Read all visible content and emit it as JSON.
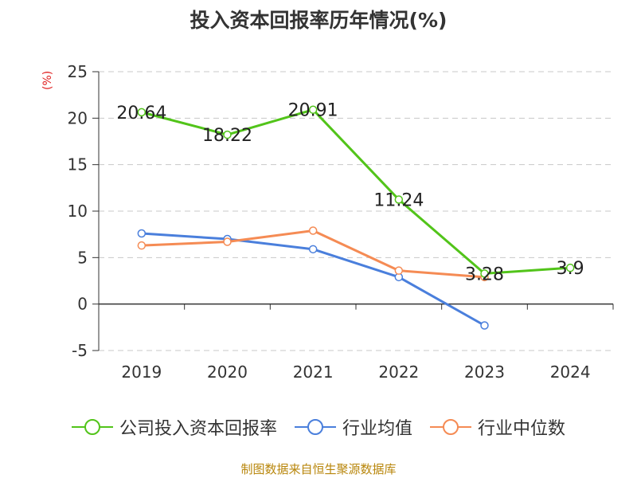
{
  "title": "投入资本回报率历年情况(%)",
  "unit_label": "(%)",
  "source": "制图数据来自恒生聚源数据库",
  "chart_data": {
    "type": "line",
    "title": "投入资本回报率历年情况(%)",
    "ylabel": "(%)",
    "xlabel": "",
    "categories": [
      "2019",
      "2020",
      "2021",
      "2022",
      "2023",
      "2024"
    ],
    "ylim": [
      -5,
      25
    ],
    "yticks": [
      -5,
      0,
      5,
      10,
      15,
      20,
      25
    ],
    "grid": true,
    "legend_position": "bottom",
    "series": [
      {
        "name": "公司投入资本回报率",
        "color": "#52c41a",
        "values": [
          20.64,
          18.22,
          20.91,
          11.24,
          3.28,
          3.9
        ],
        "labels": [
          "20.64",
          "18.22",
          "20.91",
          "11.24",
          "3.28",
          "3.9"
        ]
      },
      {
        "name": "行业均值",
        "color": "#4a7fdc",
        "values": [
          7.6,
          7.0,
          5.9,
          2.9,
          -2.3,
          null
        ]
      },
      {
        "name": "行业中位数",
        "color": "#f58b54",
        "values": [
          6.3,
          6.7,
          7.9,
          3.6,
          2.9,
          null
        ]
      }
    ]
  }
}
